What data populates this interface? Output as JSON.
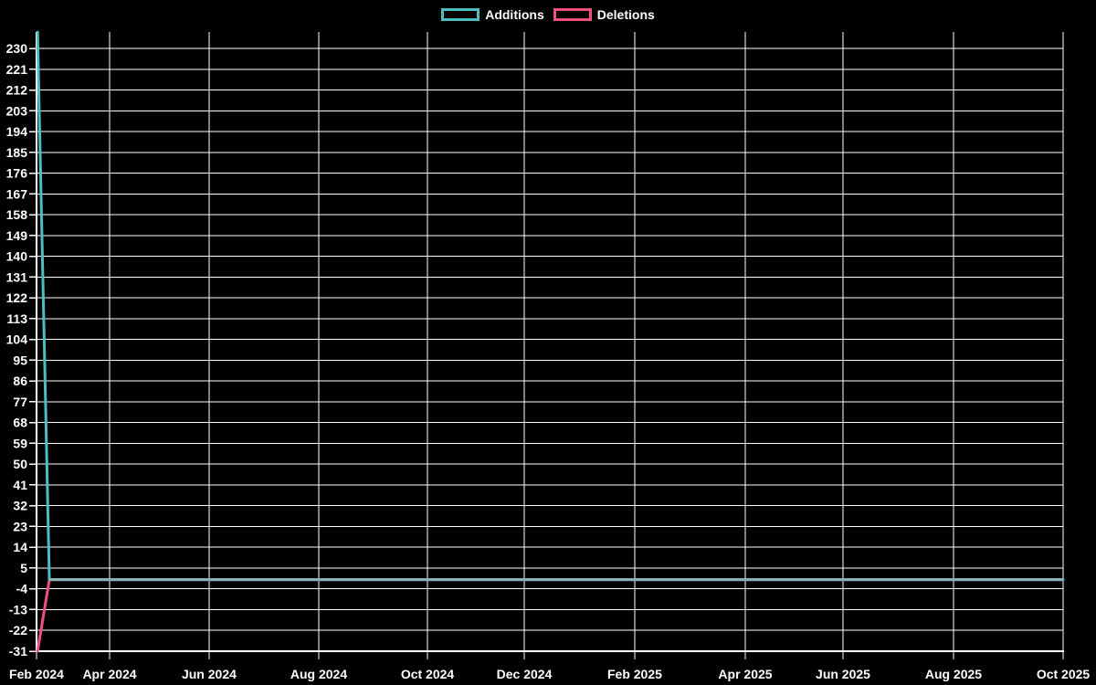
{
  "page": {
    "background": "#000000",
    "text_color": "#ffffff"
  },
  "legend": {
    "position": "top",
    "items": [
      {
        "label": "Additions",
        "color": "#4bc0c0"
      },
      {
        "label": "Deletions",
        "color": "#f0517c"
      }
    ]
  },
  "chart_data": {
    "type": "line",
    "title": "",
    "xlabel": "",
    "ylabel": "",
    "grid": true,
    "legend_position": "top",
    "background_color": "#000000",
    "grid_color": "#ffffff",
    "axis_color": "#ffffff",
    "tick_label_color": "#ffffff",
    "ylim": [
      -31,
      237
    ],
    "ytick_step": 9,
    "yticks": [
      230,
      221,
      212,
      203,
      194,
      185,
      176,
      167,
      158,
      149,
      140,
      131,
      122,
      113,
      104,
      95,
      86,
      77,
      68,
      59,
      50,
      41,
      32,
      23,
      14,
      5,
      -4,
      -13,
      -22,
      -31
    ],
    "xticks": [
      {
        "label": "Feb 2024",
        "fx": 0
      },
      {
        "label": "Apr 2024",
        "fx": 0.0712
      },
      {
        "label": "Jun 2024",
        "fx": 0.1681
      },
      {
        "label": "Aug 2024",
        "fx": 0.2749
      },
      {
        "label": "Oct 2024",
        "fx": 0.3808
      },
      {
        "label": "Dec 2024",
        "fx": 0.4751
      },
      {
        "label": "Feb 2025",
        "fx": 0.5827
      },
      {
        "label": "Apr 2025",
        "fx": 0.6904
      },
      {
        "label": "Jun 2025",
        "fx": 0.7856
      },
      {
        "label": "Aug 2025",
        "fx": 0.8932
      },
      {
        "label": "Oct 2025",
        "fx": 1
      }
    ],
    "series": [
      {
        "name": "Additions",
        "color": "#4bc0c0",
        "points": [
          {
            "fx": 0.001,
            "y": 237
          },
          {
            "fx": 0.0125,
            "y": 0
          },
          {
            "fx": 1,
            "y": 0
          }
        ]
      },
      {
        "name": "Deletions",
        "color": "#f0517c",
        "points": [
          {
            "fx": 0.001,
            "y": -31
          },
          {
            "fx": 0.0125,
            "y": 0
          },
          {
            "fx": 1,
            "y": 0
          }
        ]
      }
    ],
    "overlap_line": {
      "color": "#8fafba",
      "y": 0,
      "from_fx": 0.0125,
      "to_fx": 1
    }
  }
}
